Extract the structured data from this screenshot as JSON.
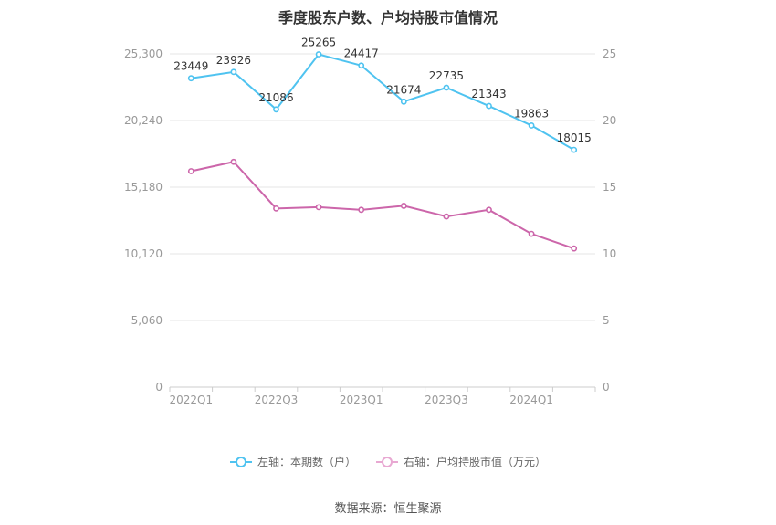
{
  "chart_data": {
    "type": "line",
    "title": "季度股东户数、户均持股市值情况",
    "categories": [
      "2022Q1",
      "2022Q2",
      "2022Q3",
      "2022Q4",
      "2023Q1",
      "2023Q2",
      "2023Q3",
      "2023Q4",
      "2024Q1",
      "2024Q2"
    ],
    "x_tick_labels": [
      "2022Q1",
      "",
      "2022Q3",
      "",
      "2023Q1",
      "",
      "2023Q3",
      "",
      "2024Q1",
      ""
    ],
    "series": [
      {
        "name": "左轴：本期数（户）",
        "axis": "left",
        "color": "#4fc3f0",
        "values": [
          23449,
          23926,
          21086,
          25265,
          24417,
          21674,
          22735,
          21343,
          19863,
          18015
        ],
        "data_labels": [
          "23449",
          "23926",
          "21086",
          "25265",
          "24417",
          "21674",
          "22735",
          "21343",
          "19863",
          "18015"
        ]
      },
      {
        "name": "右轴：户均持股市值（万元）",
        "axis": "right",
        "color": "#cc66aa",
        "values": [
          16.2,
          16.9,
          13.4,
          13.5,
          13.3,
          13.6,
          12.8,
          13.3,
          11.5,
          10.4
        ]
      }
    ],
    "left_axis": {
      "min": 0,
      "max": 25300,
      "ticks": [
        0,
        5060,
        10120,
        15180,
        20240,
        25300
      ],
      "tick_labels": [
        "0",
        "5,060",
        "10,120",
        "15,180",
        "20,240",
        "25,300"
      ]
    },
    "right_axis": {
      "min": 0,
      "max": 25,
      "ticks": [
        0,
        5,
        10,
        15,
        20,
        25
      ],
      "tick_labels": [
        "0",
        "5",
        "10",
        "15",
        "20",
        "25"
      ]
    },
    "grid": true,
    "legend_position": "bottom"
  },
  "source": "数据来源：恒生聚源"
}
